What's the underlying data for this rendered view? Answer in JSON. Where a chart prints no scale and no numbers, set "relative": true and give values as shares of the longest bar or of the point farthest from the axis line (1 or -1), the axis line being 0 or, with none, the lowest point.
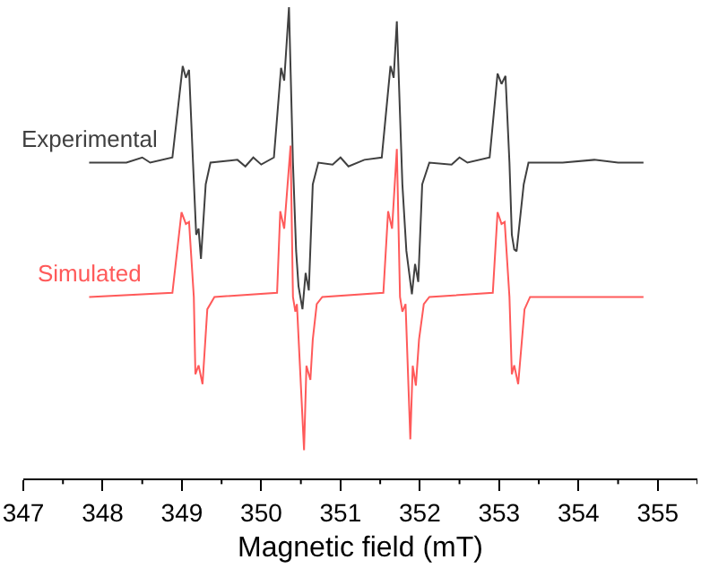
{
  "chart_data": {
    "type": "line",
    "relative": true,
    "xlabel": "Magnetic field (mT)",
    "xlim": [
      347,
      355.5
    ],
    "xticks": [
      347,
      {
        "value": 347.5,
        "label": null
      },
      348,
      {
        "value": 348.5,
        "label": null
      },
      349,
      {
        "value": 349.5,
        "label": null
      },
      350,
      {
        "value": 350.5,
        "label": null
      },
      351,
      {
        "value": 351.5,
        "label": null
      },
      352,
      {
        "value": 352.5,
        "label": null
      },
      353,
      {
        "value": 353.5,
        "label": null
      },
      354,
      {
        "value": 354.5,
        "label": null
      },
      355,
      {
        "value": 355.5,
        "label": null
      }
    ],
    "legend": false,
    "marker": "none",
    "line_style": "solid",
    "series": [
      {
        "name": "Experimental",
        "color": "#404040",
        "x": [
          347.83,
          348.3,
          348.5,
          348.6,
          348.88,
          349.01,
          349.05,
          349.09,
          349.14,
          349.18,
          349.21,
          349.24,
          349.3,
          349.36,
          349.7,
          349.8,
          349.9,
          350.0,
          350.16,
          350.25,
          350.29,
          350.35,
          350.4,
          350.44,
          350.47,
          350.52,
          350.56,
          350.6,
          350.65,
          350.72,
          350.9,
          351.0,
          351.1,
          351.3,
          351.52,
          351.63,
          351.67,
          351.71,
          351.78,
          351.83,
          351.9,
          351.94,
          351.98,
          352.03,
          352.12,
          352.4,
          352.5,
          352.6,
          352.88,
          352.98,
          353.03,
          353.08,
          353.13,
          353.16,
          353.19,
          353.22,
          353.31,
          353.37,
          353.8,
          354.2,
          354.5,
          354.82
        ],
        "values": [
          0.67,
          0.67,
          0.681,
          0.67,
          0.681,
          0.875,
          0.85,
          0.867,
          0.67,
          0.517,
          0.53,
          0.466,
          0.624,
          0.67,
          0.676,
          0.662,
          0.681,
          0.666,
          0.681,
          0.871,
          0.844,
          1.0,
          0.67,
          0.483,
          0.408,
          0.359,
          0.436,
          0.399,
          0.624,
          0.67,
          0.666,
          0.681,
          0.662,
          0.676,
          0.681,
          0.875,
          0.85,
          0.97,
          0.624,
          0.483,
          0.391,
          0.455,
          0.417,
          0.624,
          0.67,
          0.666,
          0.681,
          0.67,
          0.681,
          0.859,
          0.837,
          0.854,
          0.67,
          0.517,
          0.486,
          0.482,
          0.624,
          0.67,
          0.67,
          0.676,
          0.67,
          0.67
        ]
      },
      {
        "name": "Simulated",
        "color": "#ff5a5a",
        "x": [
          347.83,
          348.88,
          348.995,
          349.05,
          349.09,
          349.15,
          349.17,
          349.21,
          349.26,
          349.32,
          349.41,
          350.2,
          350.24,
          350.29,
          350.37,
          350.4,
          350.43,
          350.45,
          350.54,
          350.57,
          350.62,
          350.65,
          350.7,
          350.77,
          351.54,
          351.6,
          351.65,
          351.71,
          351.75,
          351.78,
          351.82,
          351.88,
          351.91,
          351.95,
          351.99,
          352.05,
          352.12,
          352.92,
          352.98,
          353.03,
          353.07,
          353.13,
          353.16,
          353.19,
          353.24,
          353.32,
          353.39,
          354.82
        ],
        "values": [
          0.385,
          0.394,
          0.565,
          0.54,
          0.544,
          0.385,
          0.221,
          0.24,
          0.2,
          0.359,
          0.385,
          0.394,
          0.567,
          0.53,
          0.706,
          0.385,
          0.354,
          0.37,
          0.06,
          0.239,
          0.209,
          0.295,
          0.37,
          0.385,
          0.394,
          0.567,
          0.53,
          0.699,
          0.385,
          0.354,
          0.37,
          0.083,
          0.239,
          0.197,
          0.295,
          0.37,
          0.385,
          0.394,
          0.565,
          0.54,
          0.544,
          0.385,
          0.221,
          0.24,
          0.2,
          0.359,
          0.385,
          0.385
        ]
      }
    ]
  }
}
